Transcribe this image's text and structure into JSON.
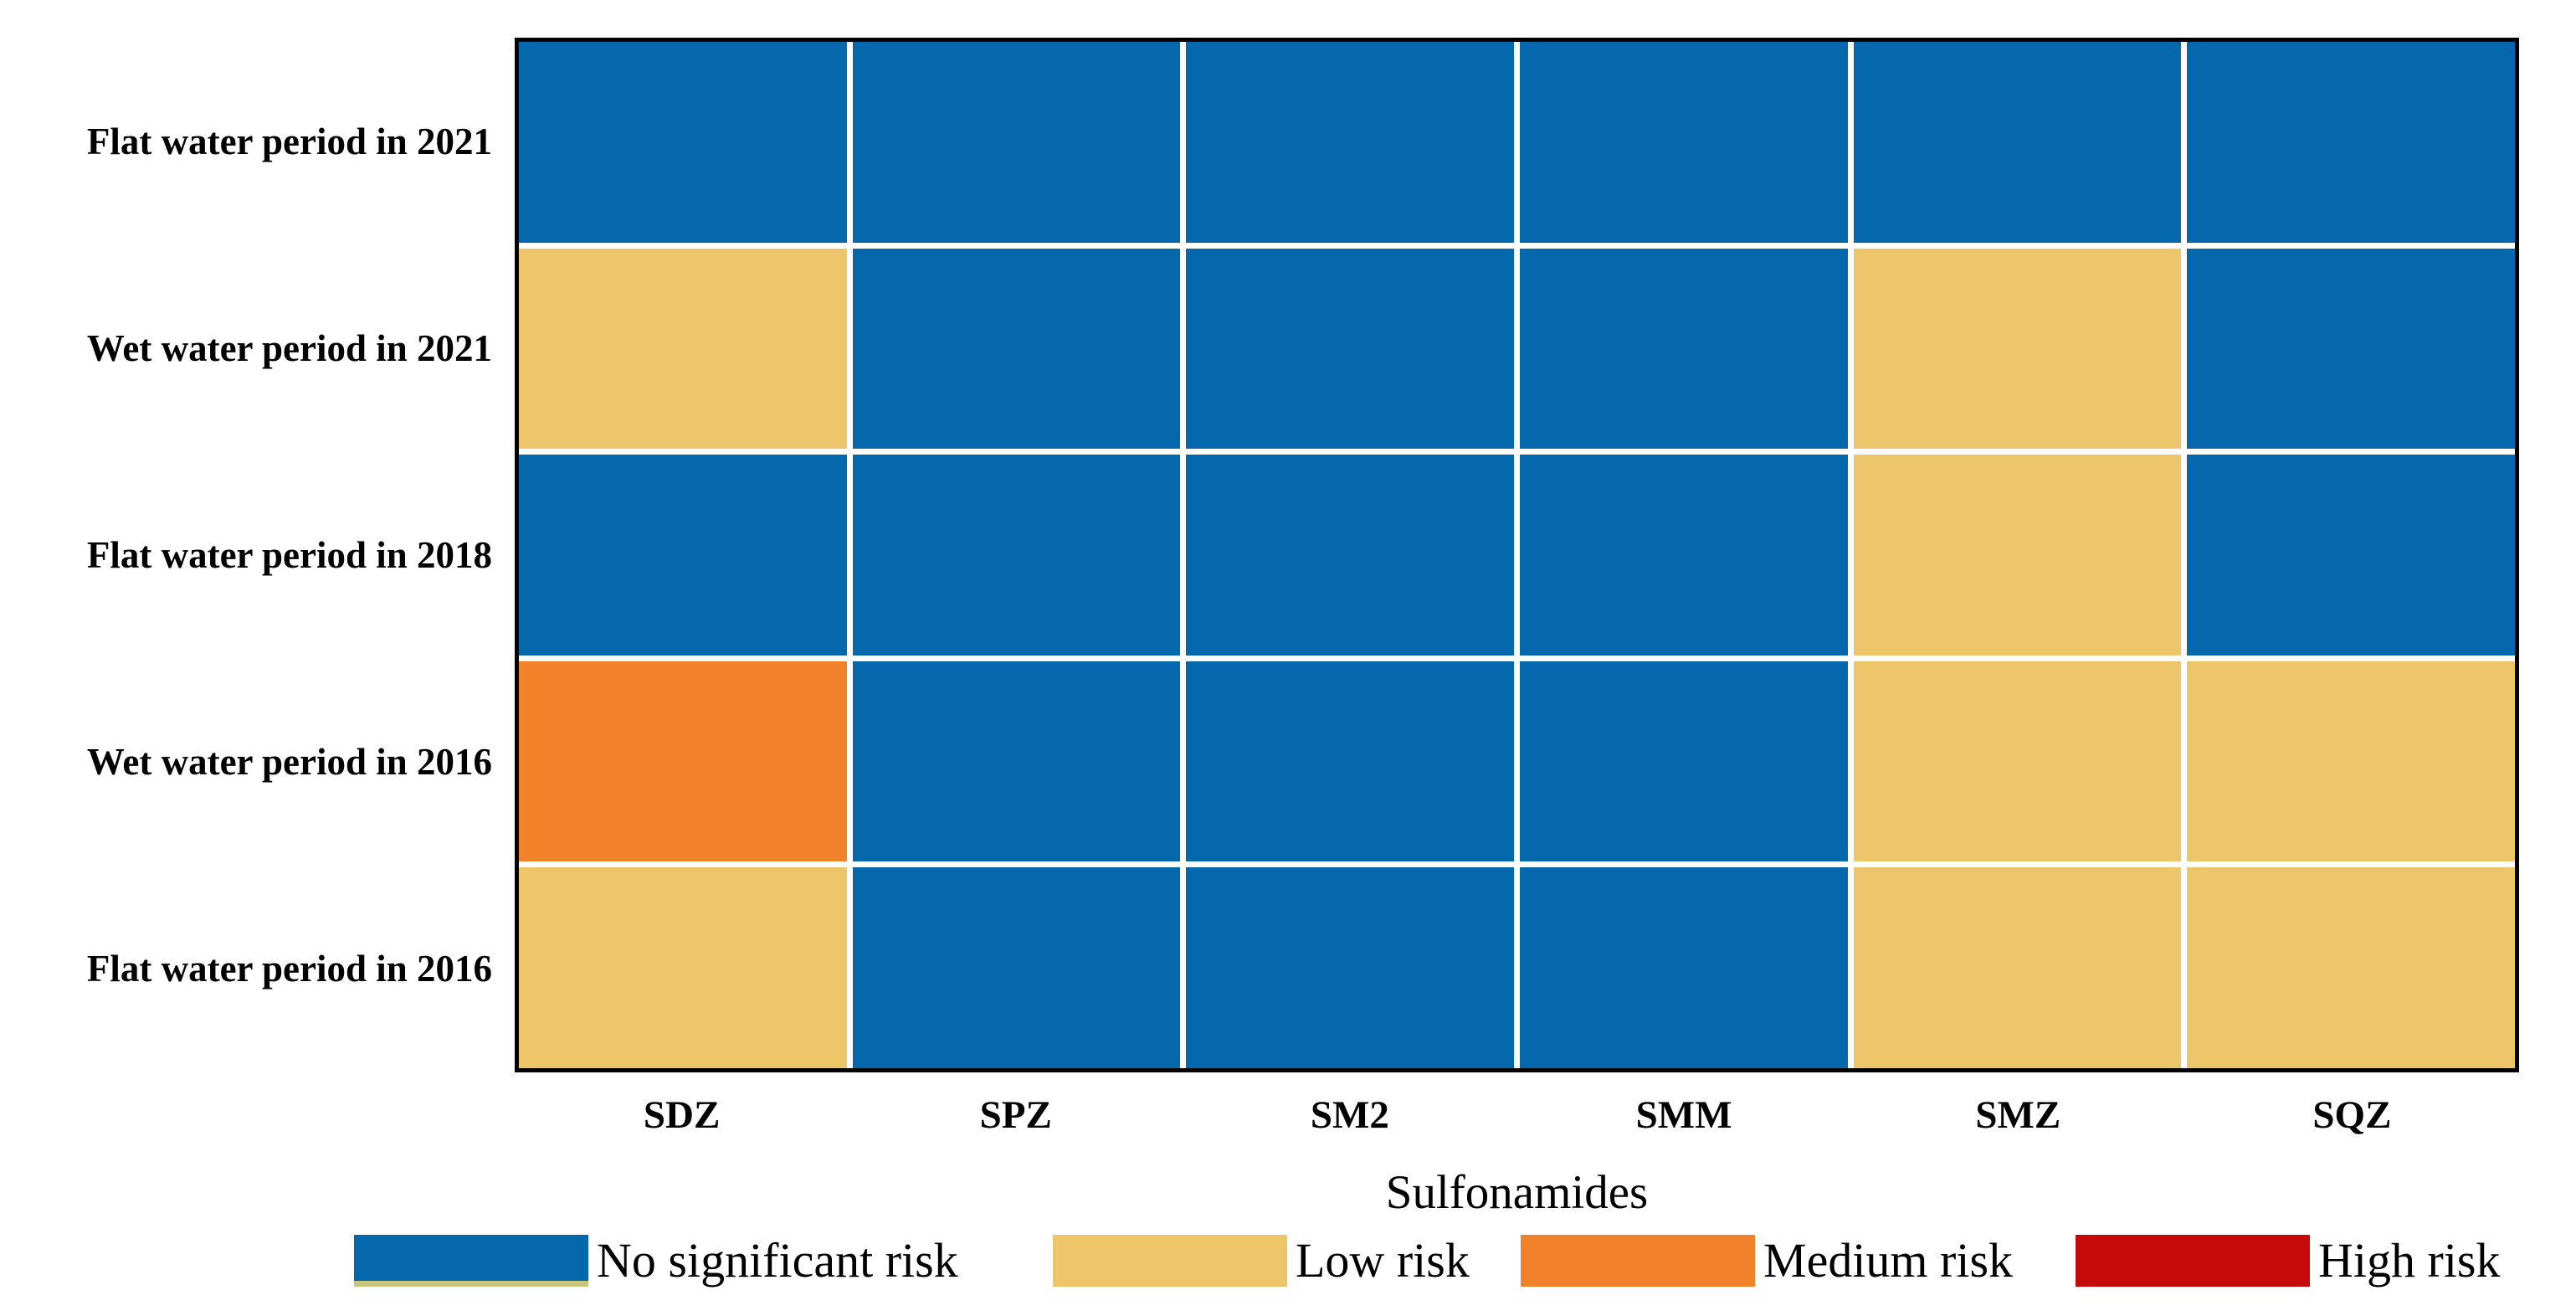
{
  "chart_data": {
    "type": "heatmap",
    "xlabel": "Sulfonamides",
    "ylabel": "",
    "columns": [
      "SDZ",
      "SPZ",
      "SM2",
      "SMM",
      "SMZ",
      "SQZ"
    ],
    "rows": [
      "Flat water period in 2021",
      "Wet water period in 2021",
      "Flat water period in 2018",
      "Wet water period in 2016",
      "Flat water period in 2016"
    ],
    "cells": [
      [
        "no",
        "no",
        "no",
        "no",
        "no",
        "no"
      ],
      [
        "low",
        "no",
        "no",
        "no",
        "low",
        "no"
      ],
      [
        "no",
        "no",
        "no",
        "no",
        "low",
        "no"
      ],
      [
        "medium",
        "no",
        "no",
        "no",
        "low",
        "low"
      ],
      [
        "low",
        "no",
        "no",
        "no",
        "low",
        "low"
      ]
    ],
    "legend": [
      {
        "key": "no",
        "label": "No significant risk",
        "color": "#0668ac"
      },
      {
        "key": "low",
        "label": "Low risk",
        "color": "#ecc669"
      },
      {
        "key": "medium",
        "label": "Medium risk",
        "color": "#f0832a"
      },
      {
        "key": "high",
        "label": "High risk",
        "color": "#c40a0a"
      }
    ],
    "legend_position": "bottom",
    "grid": true,
    "grid_line_color": "#ffffff",
    "plot_border_color": "#000000"
  }
}
